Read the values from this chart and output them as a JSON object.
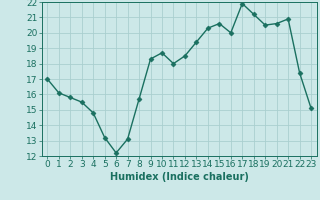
{
  "x": [
    0,
    1,
    2,
    3,
    4,
    5,
    6,
    7,
    8,
    9,
    10,
    11,
    12,
    13,
    14,
    15,
    16,
    17,
    18,
    19,
    20,
    21,
    22,
    23
  ],
  "y": [
    17,
    16.1,
    15.8,
    15.5,
    14.8,
    13.2,
    12.2,
    13.1,
    15.7,
    18.3,
    18.7,
    18.0,
    18.5,
    19.4,
    20.3,
    20.6,
    20.0,
    21.9,
    21.2,
    20.5,
    20.6,
    20.9,
    17.4,
    15.1
  ],
  "line_color": "#1a7060",
  "marker": "D",
  "markersize": 2.5,
  "linewidth": 1.0,
  "bg_color": "#cce8e8",
  "grid_color": "#aacfcf",
  "xlabel": "Humidex (Indice chaleur)",
  "xlim": [
    -0.5,
    23.5
  ],
  "ylim": [
    12,
    22
  ],
  "xticks": [
    0,
    1,
    2,
    3,
    4,
    5,
    6,
    7,
    8,
    9,
    10,
    11,
    12,
    13,
    14,
    15,
    16,
    17,
    18,
    19,
    20,
    21,
    22,
    23
  ],
  "yticks": [
    12,
    13,
    14,
    15,
    16,
    17,
    18,
    19,
    20,
    21,
    22
  ],
  "tick_color": "#1a7060",
  "label_color": "#1a7060",
  "xlabel_fontsize": 7,
  "tick_fontsize": 6.5
}
